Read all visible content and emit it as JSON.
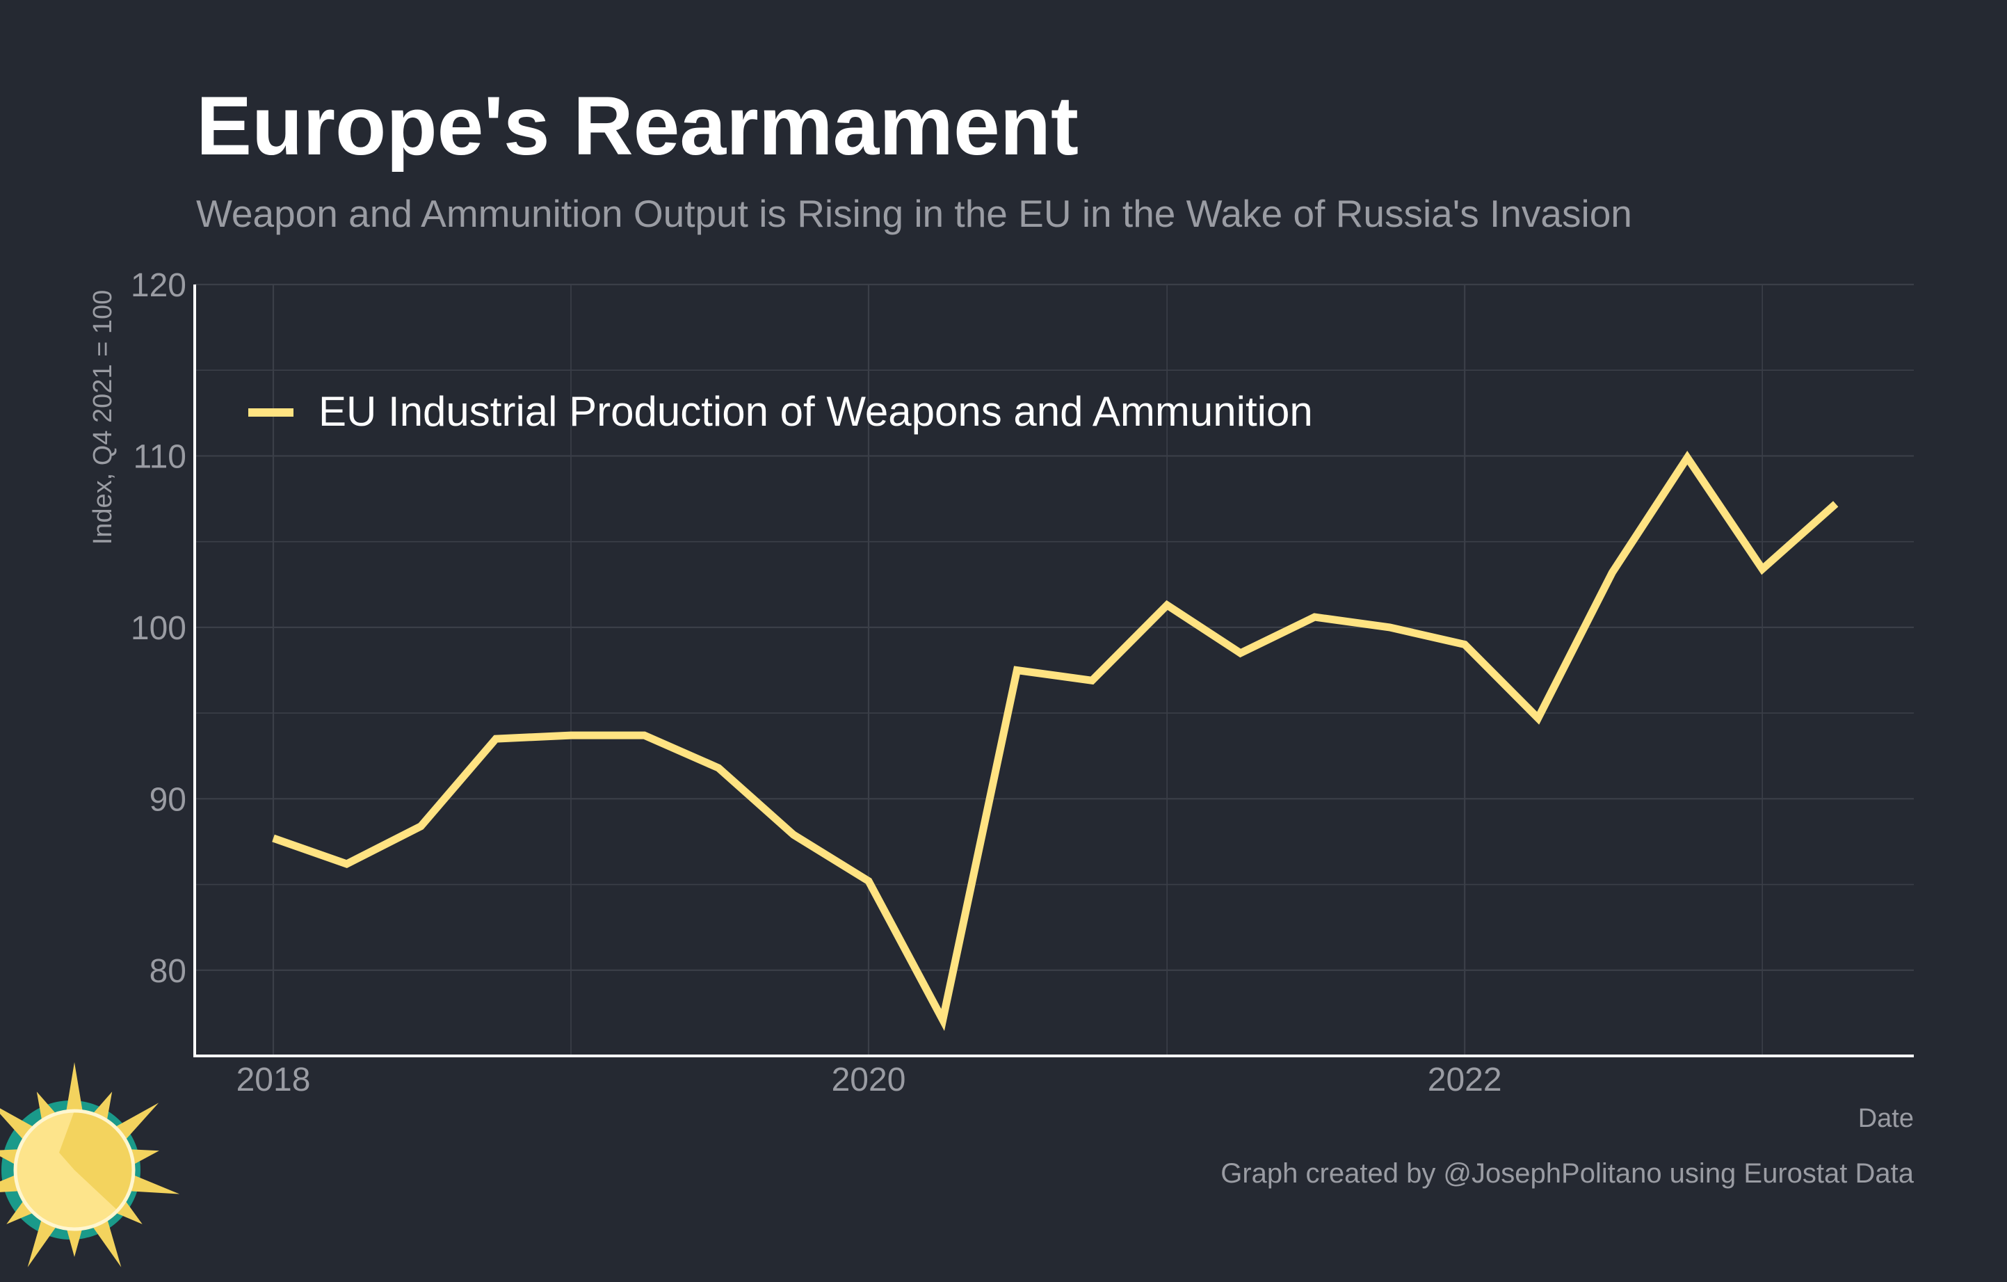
{
  "chart_data": {
    "type": "line",
    "title": "Europe's Rearmament",
    "subtitle": "Weapon and Ammunition Output is Rising in the EU in the Wake of Russia's Invasion",
    "xlabel": "Date",
    "ylabel": "Index, Q4 2021 = 100",
    "ylim": [
      75,
      120
    ],
    "yticks": [
      80,
      90,
      100,
      110,
      120
    ],
    "xticks": [
      "2018",
      "2020",
      "2022"
    ],
    "grid": true,
    "legend_position": "top-left",
    "x": [
      "2018-01-01",
      "2018-04-01",
      "2018-07-01",
      "2018-10-01",
      "2019-01-01",
      "2019-04-01",
      "2019-07-01",
      "2019-10-01",
      "2020-01-01",
      "2020-04-01",
      "2020-07-01",
      "2020-10-01",
      "2021-01-01",
      "2021-04-01",
      "2021-07-01",
      "2021-10-01",
      "2022-01-01",
      "2022-04-01",
      "2022-07-01",
      "2022-10-01",
      "2023-01-01",
      "2023-04-01"
    ],
    "series": [
      {
        "name": "EU Industrial Production of Weapons and Ammunition",
        "color": "#ffe382",
        "values": [
          87.7,
          86.2,
          88.4,
          93.5,
          93.7,
          93.7,
          91.8,
          87.9,
          85.2,
          77.1,
          97.5,
          96.9,
          101.3,
          98.5,
          100.6,
          100.0,
          99.0,
          94.7,
          103.2,
          109.9,
          103.4,
          107.2
        ]
      }
    ],
    "credit": "Graph created by @JosephPolitano using Eurostat Data"
  },
  "colors": {
    "background": "#252932",
    "grid": "#3b3f48",
    "axis": "#ffffff",
    "line": "#ffe382"
  },
  "logo": {
    "icon": "sun-logo-icon"
  }
}
